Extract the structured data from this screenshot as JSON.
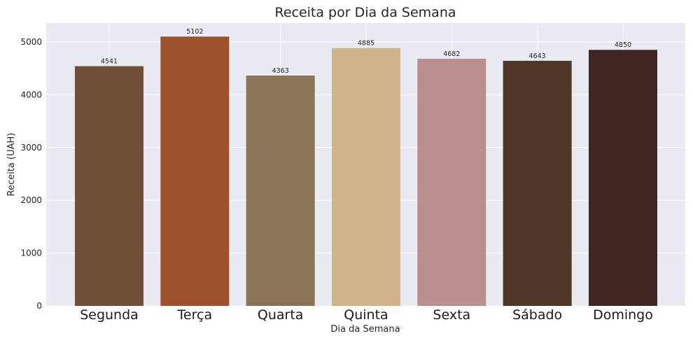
{
  "chart_data": {
    "type": "bar",
    "title": "Receita por Dia da Semana",
    "xlabel": "Dia da Semana",
    "ylabel": "Receita (UAH)",
    "categories": [
      "Segunda",
      "Terça",
      "Quarta",
      "Quinta",
      "Sexta",
      "Sábado",
      "Domingo"
    ],
    "values": [
      4541,
      5102,
      4363,
      4885,
      4682,
      4643,
      4850
    ],
    "data_labels": [
      "4541",
      "5102",
      "4363",
      "4885",
      "4682",
      "4643",
      "4850"
    ],
    "colors": [
      "#6f4f37",
      "#9e522c",
      "#8b7355",
      "#d2b48c",
      "#bc8f8f",
      "#4e3629",
      "#3e2723"
    ],
    "yticks": [
      0,
      1000,
      2000,
      3000,
      4000,
      5000
    ],
    "ytick_labels": [
      "0",
      "1000",
      "2000",
      "3000",
      "4000",
      "5000"
    ],
    "ylim": [
      0,
      5357
    ],
    "grid": true,
    "background": "#eaeaf2"
  }
}
